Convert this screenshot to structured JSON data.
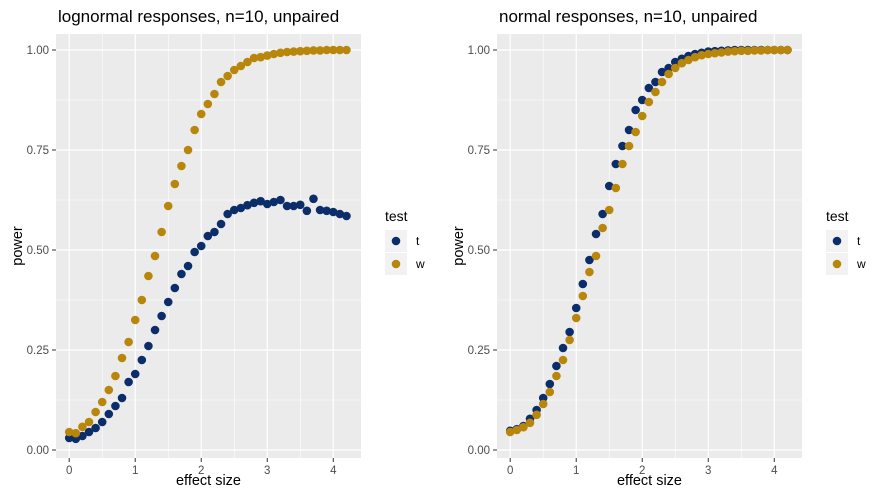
{
  "chart_data": [
    {
      "type": "scatter",
      "title": "lognormal responses, n=10, unpaired",
      "xlabel": "effect size",
      "ylabel": "power",
      "xlim": [
        -0.2,
        4.42
      ],
      "ylim": [
        -0.02,
        1.04
      ],
      "x_ticks": [
        0,
        1,
        2,
        3,
        4
      ],
      "x_tick_labels": [
        "0",
        "1",
        "2",
        "3",
        "4"
      ],
      "y_ticks": [
        0,
        0.25,
        0.5,
        0.75,
        1
      ],
      "y_tick_labels": [
        "0.00",
        "0.25",
        "0.50",
        "0.75",
        "1.00"
      ],
      "grid": true,
      "legend": {
        "title": "test",
        "position": "right"
      },
      "series": [
        {
          "name": "t",
          "color": "#0b2e6b",
          "x": [
            0,
            0.1,
            0.2,
            0.3,
            0.4,
            0.5,
            0.6,
            0.7,
            0.8,
            0.9,
            1.0,
            1.1,
            1.2,
            1.3,
            1.4,
            1.5,
            1.6,
            1.7,
            1.8,
            1.9,
            2.0,
            2.1,
            2.2,
            2.3,
            2.4,
            2.5,
            2.6,
            2.7,
            2.8,
            2.9,
            3.0,
            3.1,
            3.2,
            3.3,
            3.4,
            3.5,
            3.6,
            3.7,
            3.8,
            3.9,
            4.0,
            4.1,
            4.2
          ],
          "y": [
            0.03,
            0.028,
            0.035,
            0.045,
            0.055,
            0.07,
            0.09,
            0.11,
            0.13,
            0.17,
            0.19,
            0.225,
            0.26,
            0.3,
            0.335,
            0.37,
            0.405,
            0.44,
            0.46,
            0.495,
            0.51,
            0.535,
            0.545,
            0.565,
            0.59,
            0.6,
            0.605,
            0.612,
            0.618,
            0.622,
            0.615,
            0.62,
            0.625,
            0.61,
            0.61,
            0.613,
            0.598,
            0.628,
            0.6,
            0.598,
            0.595,
            0.59,
            0.585
          ]
        },
        {
          "name": "w",
          "color": "#b8860b",
          "x": [
            0,
            0.1,
            0.2,
            0.3,
            0.4,
            0.5,
            0.6,
            0.7,
            0.8,
            0.9,
            1.0,
            1.1,
            1.2,
            1.3,
            1.4,
            1.5,
            1.6,
            1.7,
            1.8,
            1.9,
            2.0,
            2.1,
            2.2,
            2.3,
            2.4,
            2.5,
            2.6,
            2.7,
            2.8,
            2.9,
            3.0,
            3.1,
            3.2,
            3.3,
            3.4,
            3.5,
            3.6,
            3.7,
            3.8,
            3.9,
            4.0,
            4.1,
            4.2
          ],
          "y": [
            0.045,
            0.042,
            0.058,
            0.07,
            0.095,
            0.12,
            0.15,
            0.185,
            0.23,
            0.27,
            0.325,
            0.375,
            0.435,
            0.485,
            0.545,
            0.61,
            0.665,
            0.71,
            0.75,
            0.8,
            0.84,
            0.865,
            0.89,
            0.92,
            0.935,
            0.95,
            0.96,
            0.97,
            0.98,
            0.982,
            0.986,
            0.99,
            0.993,
            0.995,
            0.996,
            0.997,
            0.998,
            0.999,
            0.999,
            1.0,
            1.0,
            1.0,
            1.0
          ]
        }
      ]
    },
    {
      "type": "scatter",
      "title": "normal responses, n=10, unpaired",
      "xlabel": "effect size",
      "ylabel": "power",
      "xlim": [
        -0.2,
        4.42
      ],
      "ylim": [
        -0.02,
        1.04
      ],
      "x_ticks": [
        0,
        1,
        2,
        3,
        4
      ],
      "x_tick_labels": [
        "0",
        "1",
        "2",
        "3",
        "4"
      ],
      "y_ticks": [
        0,
        0.25,
        0.5,
        0.75,
        1
      ],
      "y_tick_labels": [
        "0.00",
        "0.25",
        "0.50",
        "0.75",
        "1.00"
      ],
      "grid": true,
      "legend": {
        "title": "test",
        "position": "right"
      },
      "series": [
        {
          "name": "t",
          "color": "#0b2e6b",
          "x": [
            0,
            0.1,
            0.2,
            0.3,
            0.4,
            0.5,
            0.6,
            0.7,
            0.8,
            0.9,
            1.0,
            1.1,
            1.2,
            1.3,
            1.4,
            1.5,
            1.6,
            1.7,
            1.8,
            1.9,
            2.0,
            2.1,
            2.2,
            2.3,
            2.4,
            2.5,
            2.6,
            2.7,
            2.8,
            2.9,
            3.0,
            3.1,
            3.2,
            3.3,
            3.4,
            3.5,
            3.6,
            3.7,
            3.8,
            3.9,
            4.0,
            4.1,
            4.2
          ],
          "y": [
            0.048,
            0.052,
            0.06,
            0.078,
            0.1,
            0.13,
            0.165,
            0.21,
            0.255,
            0.295,
            0.355,
            0.415,
            0.475,
            0.54,
            0.59,
            0.66,
            0.715,
            0.76,
            0.8,
            0.85,
            0.875,
            0.905,
            0.92,
            0.945,
            0.955,
            0.97,
            0.978,
            0.985,
            0.99,
            0.993,
            0.996,
            0.997,
            0.998,
            0.999,
            1.0,
            1.0,
            1.0,
            1.0,
            1.0,
            1.0,
            1.0,
            1.0,
            1.0
          ]
        },
        {
          "name": "w",
          "color": "#b8860b",
          "x": [
            0,
            0.1,
            0.2,
            0.3,
            0.4,
            0.5,
            0.6,
            0.7,
            0.8,
            0.9,
            1.0,
            1.1,
            1.2,
            1.3,
            1.4,
            1.5,
            1.6,
            1.7,
            1.8,
            1.9,
            2.0,
            2.1,
            2.2,
            2.3,
            2.4,
            2.5,
            2.6,
            2.7,
            2.8,
            2.9,
            3.0,
            3.1,
            3.2,
            3.3,
            3.4,
            3.5,
            3.6,
            3.7,
            3.8,
            3.9,
            4.0,
            4.1,
            4.2
          ],
          "y": [
            0.045,
            0.05,
            0.057,
            0.068,
            0.088,
            0.115,
            0.145,
            0.185,
            0.225,
            0.275,
            0.33,
            0.385,
            0.445,
            0.485,
            0.555,
            0.6,
            0.655,
            0.715,
            0.76,
            0.795,
            0.835,
            0.87,
            0.895,
            0.92,
            0.94,
            0.955,
            0.967,
            0.975,
            0.982,
            0.987,
            0.99,
            0.992,
            0.994,
            0.996,
            0.997,
            0.998,
            0.998,
            0.999,
            0.999,
            1.0,
            1.0,
            1.0,
            1.0
          ]
        }
      ]
    }
  ]
}
